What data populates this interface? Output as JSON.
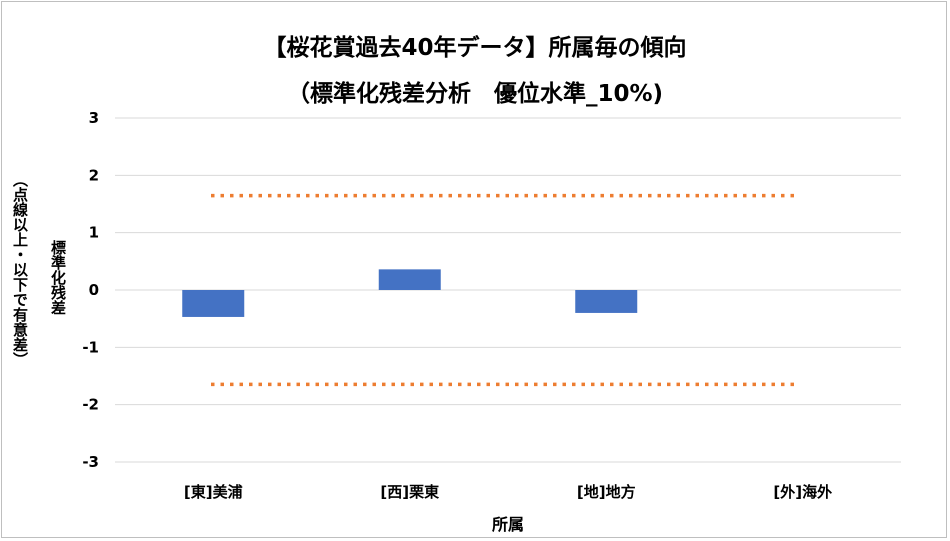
{
  "chart_data": {
    "type": "bar",
    "title": "【桜花賞過去40年データ】所属毎の傾向",
    "subtitle": "（標準化残差分析　優位水準_10%)",
    "ylabel_line1": "標準化残差",
    "ylabel_line2": "（点線以上・以下で有意差）",
    "xlabel": "所属",
    "categories": [
      "[東]美浦",
      "[西]栗東",
      "[地]地方",
      "[外]海外"
    ],
    "values": [
      -0.47,
      0.36,
      -0.4,
      0
    ],
    "ylim": [
      -3,
      3
    ],
    "yticks": [
      "3",
      "2",
      "1",
      "0",
      "-1",
      "-2",
      "-3"
    ],
    "threshold": 1.645,
    "grid": true,
    "colors": {
      "bar": "#4472c4",
      "threshold": "#ed7d31",
      "grid": "#d9d9d9"
    }
  }
}
